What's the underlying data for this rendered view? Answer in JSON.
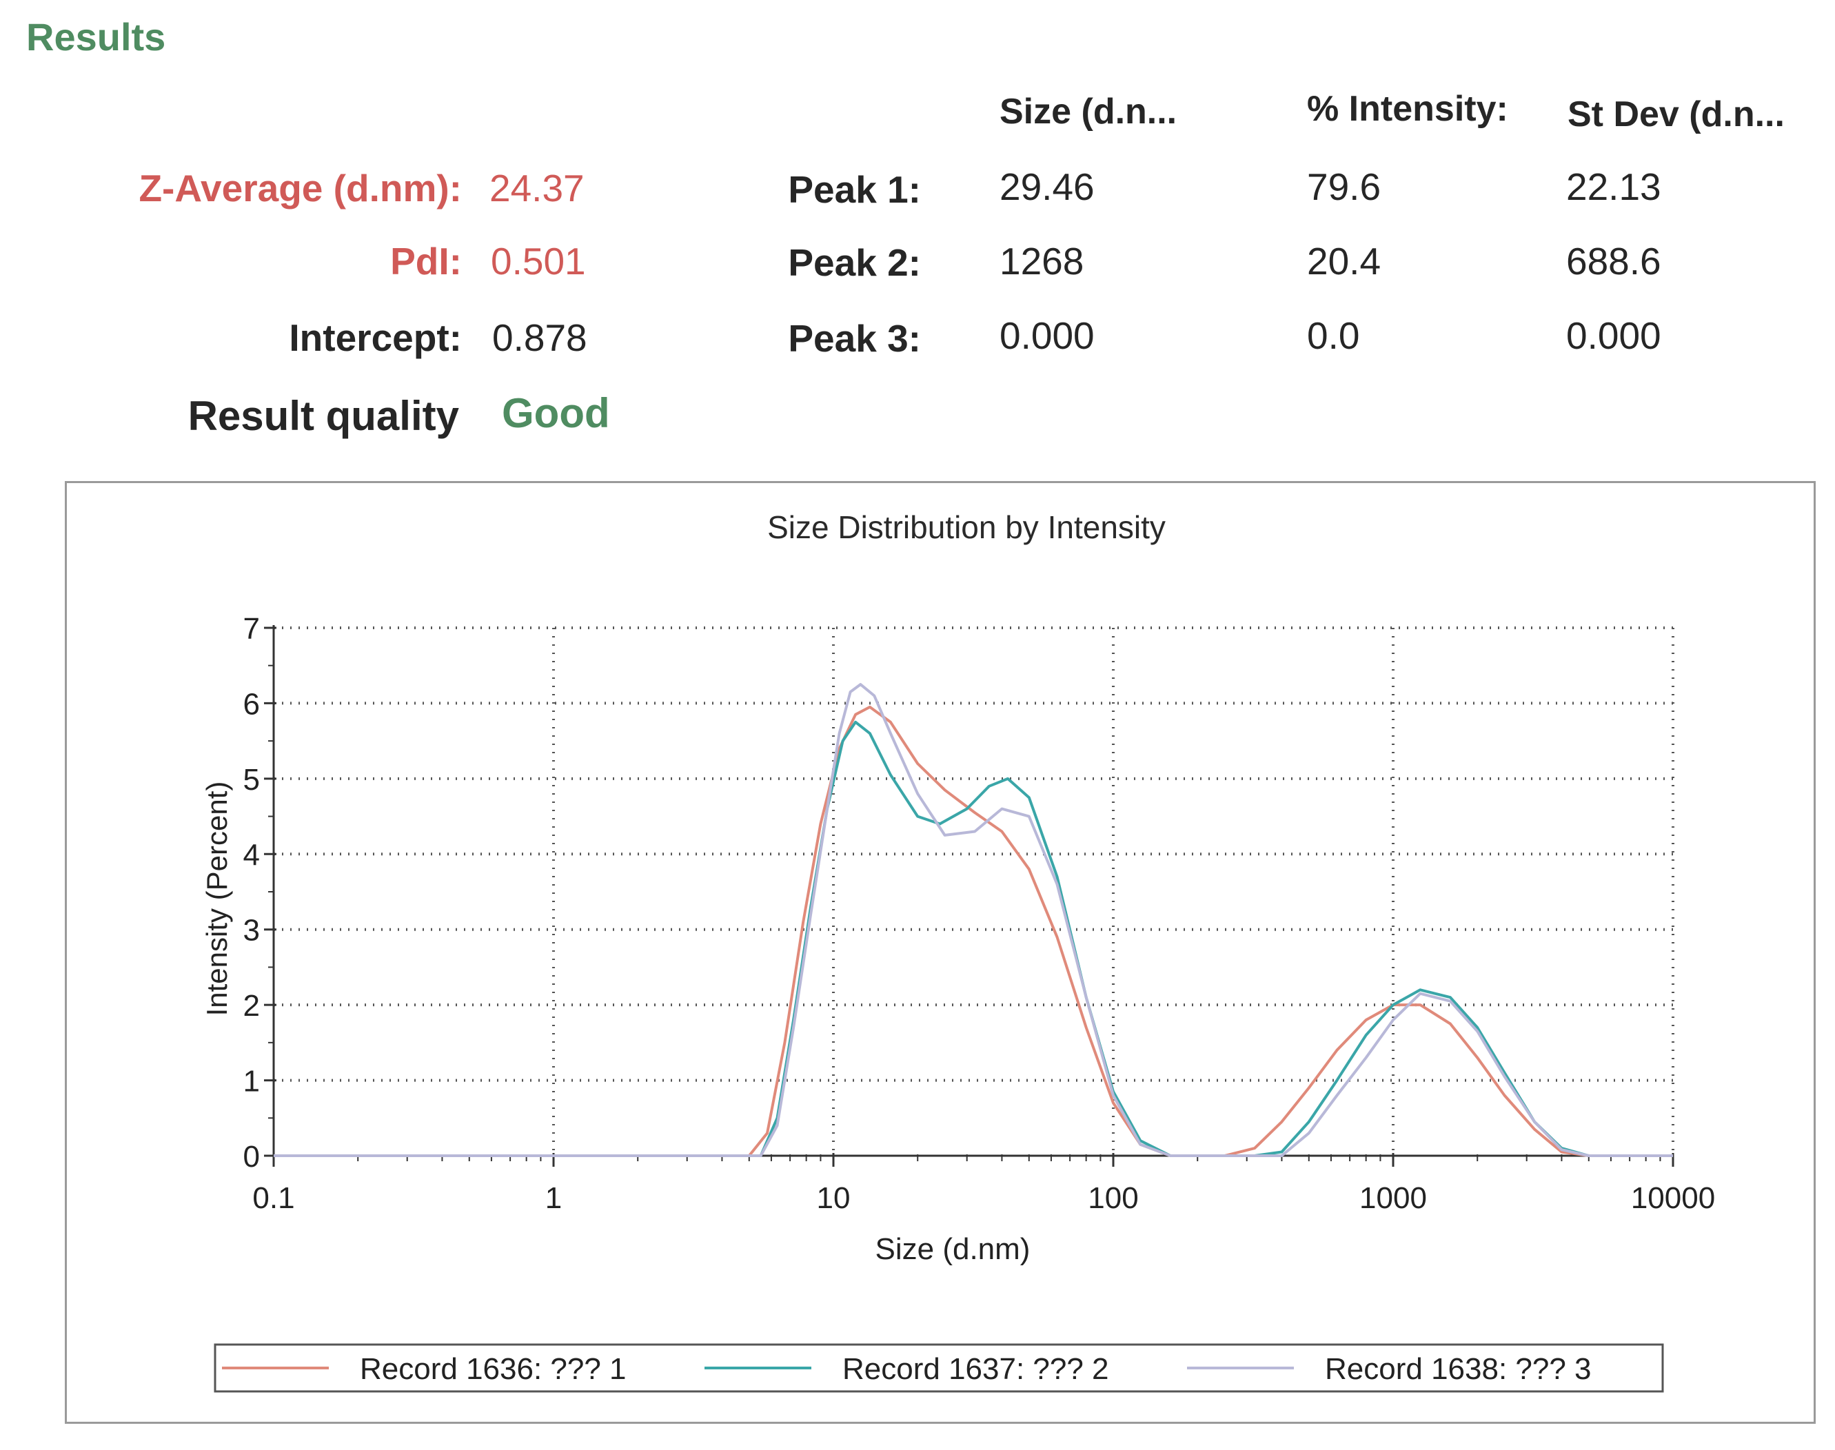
{
  "results": {
    "title": "Results",
    "z_average_label": "Z-Average (d.nm):",
    "z_average_value": "24.37",
    "pdi_label": "PdI:",
    "pdi_value": "0.501",
    "intercept_label": "Intercept:",
    "intercept_value": "0.878",
    "quality_label": "Result quality",
    "quality_value": "Good",
    "colors": {
      "highlight": "#d05a57",
      "good": "#4f8c61"
    }
  },
  "peaks_table": {
    "headers": [
      "Size (d.n...",
      "% Intensity:",
      "St Dev (d.n..."
    ],
    "rows": [
      {
        "label": "Peak 1:",
        "size": "29.46",
        "intensity": "79.6",
        "stdev": "22.13"
      },
      {
        "label": "Peak 2:",
        "size": "1268",
        "intensity": "20.4",
        "stdev": "688.6"
      },
      {
        "label": "Peak 3:",
        "size": "0.000",
        "intensity": "0.0",
        "stdev": "0.000"
      }
    ]
  },
  "chart_data": {
    "type": "line",
    "title": "Size Distribution by Intensity",
    "xlabel": "Size (d.nm)",
    "ylabel": "Intensity (Percent)",
    "x_scale": "log",
    "xlim": [
      0.1,
      10000
    ],
    "ylim": [
      0,
      7
    ],
    "x_ticks": [
      0.1,
      1,
      10,
      100,
      1000,
      10000
    ],
    "x_tick_labels": [
      "0.1",
      "1",
      "10",
      "100",
      "1000",
      "10000"
    ],
    "y_ticks": [
      0,
      1,
      2,
      3,
      4,
      5,
      6,
      7
    ],
    "y_tick_labels": [
      "0",
      "1",
      "2",
      "3",
      "4",
      "5",
      "6",
      "7"
    ],
    "grid": true,
    "legend_position": "bottom",
    "series": [
      {
        "name": "Record 1636: ??? 1",
        "color": "#e08a7a",
        "points": [
          [
            0.1,
            0
          ],
          [
            5,
            0
          ],
          [
            5.8,
            0.3
          ],
          [
            6.7,
            1.5
          ],
          [
            7.8,
            3.1
          ],
          [
            9,
            4.4
          ],
          [
            10.5,
            5.4
          ],
          [
            12,
            5.85
          ],
          [
            13.5,
            5.95
          ],
          [
            16,
            5.75
          ],
          [
            20,
            5.2
          ],
          [
            25,
            4.85
          ],
          [
            32,
            4.55
          ],
          [
            40,
            4.3
          ],
          [
            50,
            3.8
          ],
          [
            63,
            2.9
          ],
          [
            80,
            1.7
          ],
          [
            100,
            0.7
          ],
          [
            125,
            0.15
          ],
          [
            160,
            0
          ],
          [
            250,
            0
          ],
          [
            320,
            0.1
          ],
          [
            400,
            0.45
          ],
          [
            500,
            0.9
          ],
          [
            630,
            1.4
          ],
          [
            800,
            1.8
          ],
          [
            1000,
            2.0
          ],
          [
            1250,
            2.0
          ],
          [
            1600,
            1.75
          ],
          [
            2000,
            1.3
          ],
          [
            2500,
            0.8
          ],
          [
            3200,
            0.35
          ],
          [
            4000,
            0.05
          ],
          [
            5000,
            0
          ],
          [
            10000,
            0
          ]
        ]
      },
      {
        "name": "Record 1637: ??? 2",
        "color": "#3aa6a8",
        "points": [
          [
            0.1,
            0
          ],
          [
            5.5,
            0
          ],
          [
            6.3,
            0.5
          ],
          [
            7.2,
            1.8
          ],
          [
            8.3,
            3.3
          ],
          [
            9.5,
            4.6
          ],
          [
            10.8,
            5.5
          ],
          [
            12,
            5.75
          ],
          [
            13.5,
            5.6
          ],
          [
            16,
            5.05
          ],
          [
            20,
            4.5
          ],
          [
            24,
            4.4
          ],
          [
            30,
            4.6
          ],
          [
            36,
            4.9
          ],
          [
            42,
            5.0
          ],
          [
            50,
            4.75
          ],
          [
            63,
            3.7
          ],
          [
            80,
            2.1
          ],
          [
            100,
            0.85
          ],
          [
            125,
            0.2
          ],
          [
            160,
            0
          ],
          [
            320,
            0
          ],
          [
            400,
            0.05
          ],
          [
            500,
            0.45
          ],
          [
            630,
            1.0
          ],
          [
            800,
            1.6
          ],
          [
            1000,
            2.0
          ],
          [
            1250,
            2.2
          ],
          [
            1600,
            2.1
          ],
          [
            2000,
            1.7
          ],
          [
            2500,
            1.1
          ],
          [
            3200,
            0.45
          ],
          [
            4000,
            0.1
          ],
          [
            5000,
            0
          ],
          [
            10000,
            0
          ]
        ]
      },
      {
        "name": "Record 1638: ??? 3",
        "color": "#b8b8d8",
        "points": [
          [
            0.1,
            0
          ],
          [
            5.5,
            0
          ],
          [
            6.3,
            0.4
          ],
          [
            7.2,
            1.7
          ],
          [
            8.3,
            3.2
          ],
          [
            9.5,
            4.6
          ],
          [
            10.5,
            5.6
          ],
          [
            11.5,
            6.15
          ],
          [
            12.5,
            6.25
          ],
          [
            14,
            6.1
          ],
          [
            16,
            5.6
          ],
          [
            20,
            4.8
          ],
          [
            25,
            4.25
          ],
          [
            32,
            4.3
          ],
          [
            40,
            4.6
          ],
          [
            50,
            4.5
          ],
          [
            63,
            3.6
          ],
          [
            80,
            2.1
          ],
          [
            100,
            0.8
          ],
          [
            125,
            0.15
          ],
          [
            160,
            0
          ],
          [
            400,
            0
          ],
          [
            500,
            0.3
          ],
          [
            630,
            0.8
          ],
          [
            800,
            1.3
          ],
          [
            1000,
            1.8
          ],
          [
            1250,
            2.15
          ],
          [
            1600,
            2.05
          ],
          [
            2000,
            1.65
          ],
          [
            2500,
            1.05
          ],
          [
            3200,
            0.45
          ],
          [
            4000,
            0.08
          ],
          [
            5000,
            0
          ],
          [
            10000,
            0
          ]
        ]
      }
    ]
  }
}
